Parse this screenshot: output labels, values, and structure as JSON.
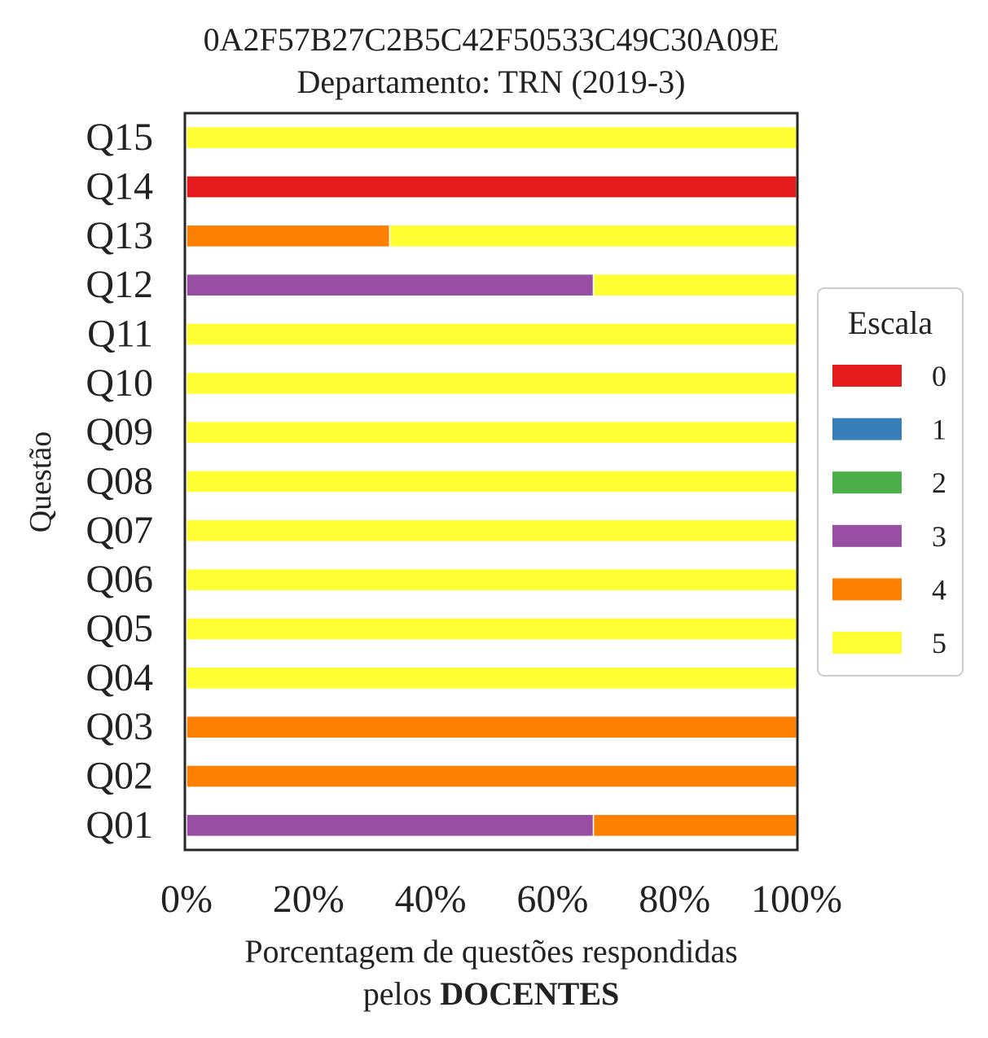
{
  "chart_data": {
    "type": "bar",
    "orientation": "horizontal",
    "stacked": true,
    "title": "0A2F57B27C2B5C42F50533C49C30A09E",
    "subtitle": "Departamento: TRN (2019-3)",
    "xlabel_line1": "Porcentagem de questões respondidas",
    "xlabel_line2_prefix": "pelos ",
    "xlabel_line2_bold": "DOCENTES",
    "ylabel": "Questão",
    "xlim": [
      0,
      100
    ],
    "xticks": [
      {
        "value": 0,
        "label": "0%"
      },
      {
        "value": 20,
        "label": "20%"
      },
      {
        "value": 40,
        "label": "40%"
      },
      {
        "value": 60,
        "label": "60%"
      },
      {
        "value": 80,
        "label": "80%"
      },
      {
        "value": 100,
        "label": "100%"
      }
    ],
    "grid": false,
    "categories": [
      "Q01",
      "Q02",
      "Q03",
      "Q04",
      "Q05",
      "Q06",
      "Q07",
      "Q08",
      "Q09",
      "Q10",
      "Q11",
      "Q12",
      "Q13",
      "Q14",
      "Q15"
    ],
    "series": [
      {
        "name": "0",
        "color": "#e41a1c",
        "values": [
          0,
          0,
          0,
          0,
          0,
          0,
          0,
          0,
          0,
          0,
          0,
          0,
          0,
          100,
          0
        ]
      },
      {
        "name": "1",
        "color": "#377eb8",
        "values": [
          0,
          0,
          0,
          0,
          0,
          0,
          0,
          0,
          0,
          0,
          0,
          0,
          0,
          0,
          0
        ]
      },
      {
        "name": "2",
        "color": "#4daf4a",
        "values": [
          0,
          0,
          0,
          0,
          0,
          0,
          0,
          0,
          0,
          0,
          0,
          0,
          0,
          0,
          0
        ]
      },
      {
        "name": "3",
        "color": "#984ea3",
        "values": [
          66.7,
          0,
          0,
          0,
          0,
          0,
          0,
          0,
          0,
          0,
          0,
          66.7,
          0,
          0,
          0
        ]
      },
      {
        "name": "4",
        "color": "#ff7f00",
        "values": [
          33.3,
          100,
          100,
          0,
          0,
          0,
          0,
          0,
          0,
          0,
          0,
          0,
          33.3,
          0,
          0
        ]
      },
      {
        "name": "5",
        "color": "#ffff33",
        "values": [
          0,
          0,
          0,
          100,
          100,
          100,
          100,
          100,
          100,
          100,
          100,
          33.3,
          66.7,
          0,
          100
        ]
      }
    ],
    "legend": {
      "title": "Escala",
      "placement": "center-right-outside"
    }
  }
}
